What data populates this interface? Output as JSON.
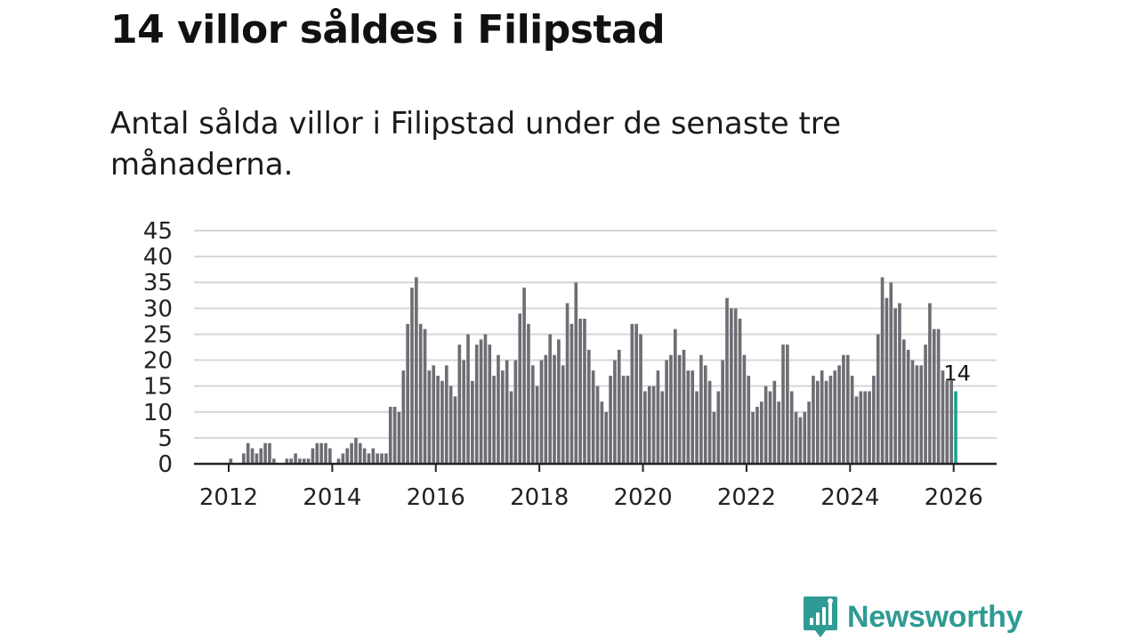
{
  "title": "14 villor såldes i Filipstad",
  "subtitle": "Antal sålda villor i Filipstad under de senaste tre månaderna.",
  "logo": {
    "text": "Newsworthy",
    "icon": "newsworthy-logo-icon",
    "color": "#2e9b94"
  },
  "chart_data": {
    "type": "bar",
    "title": "14 villor såldes i Filipstad",
    "xlabel": "",
    "ylabel": "",
    "ylim": [
      0,
      45
    ],
    "yticks": [
      "0",
      "5",
      "10",
      "15",
      "20",
      "25",
      "30",
      "35",
      "40",
      "45"
    ],
    "xticks": [
      "2012",
      "2014",
      "2016",
      "2018",
      "2020",
      "2022",
      "2024",
      "2026"
    ],
    "xrange_years": [
      2011.33,
      2026.83
    ],
    "start": {
      "year": 2012,
      "month": 1
    },
    "bar_color": "#6e6d74",
    "highlight_color": "#1aa19a",
    "last_label": "14",
    "grid": true,
    "values": [
      1,
      0,
      0,
      2,
      4,
      3,
      2,
      3,
      4,
      4,
      1,
      0,
      0,
      1,
      1,
      2,
      1,
      1,
      1,
      3,
      4,
      4,
      4,
      3,
      0,
      1,
      2,
      3,
      4,
      5,
      4,
      3,
      2,
      3,
      2,
      2,
      2,
      11,
      11,
      10,
      18,
      27,
      34,
      36,
      27,
      26,
      18,
      19,
      17,
      16,
      19,
      15,
      13,
      23,
      20,
      25,
      16,
      23,
      24,
      25,
      23,
      17,
      21,
      18,
      20,
      14,
      20,
      29,
      34,
      27,
      19,
      15,
      20,
      21,
      25,
      21,
      24,
      19,
      31,
      27,
      35,
      28,
      28,
      22,
      18,
      15,
      12,
      10,
      17,
      20,
      22,
      17,
      17,
      27,
      27,
      25,
      14,
      15,
      15,
      18,
      14,
      20,
      21,
      26,
      21,
      22,
      18,
      18,
      14,
      21,
      19,
      16,
      10,
      14,
      20,
      32,
      30,
      30,
      28,
      21,
      17,
      10,
      11,
      12,
      15,
      14,
      16,
      12,
      23,
      23,
      14,
      10,
      9,
      10,
      12,
      17,
      16,
      18,
      16,
      17,
      18,
      19,
      21,
      21,
      17,
      13,
      14,
      14,
      14,
      17,
      25,
      36,
      32,
      35,
      30,
      31,
      24,
      22,
      20,
      19,
      19,
      23,
      31,
      26,
      26,
      18,
      16,
      16,
      14
    ]
  }
}
